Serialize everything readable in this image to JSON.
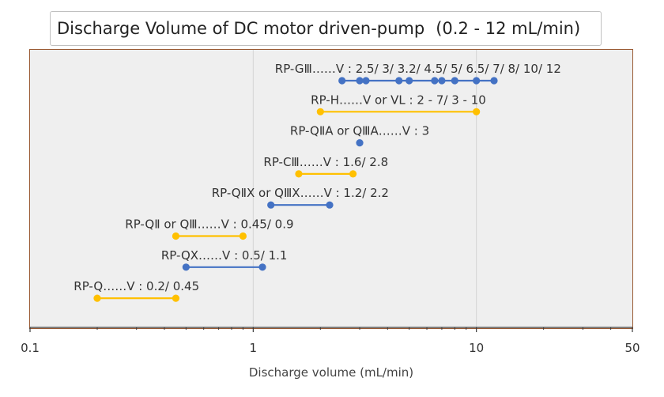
{
  "chart_data": {
    "type": "scatter",
    "title": "Discharge Volume of DC motor driven-pump",
    "subtitle": "(0.2 - 12 mL/min)",
    "xlabel": "Discharge volume (mL/min)",
    "ylabel": "",
    "xscale": "log",
    "xlim": [
      0.1,
      50
    ],
    "xticks": [
      "0.1",
      "1",
      "10",
      "50"
    ],
    "xtick_values": [
      0.1,
      1,
      10,
      50
    ],
    "grid": "vertical",
    "colors": {
      "blue": "#4472c4",
      "gold": "#ffc000",
      "frame": "#9a5a33",
      "plot_bg": "#efefef"
    },
    "series": [
      {
        "label": "RP-GⅢ……V : 2.5/ 3/ 3.2/ 4.5/ 5/ 6.5/ 7/ 8/ 10/ 12",
        "color": "blue",
        "values": [
          2.5,
          3,
          3.2,
          4.5,
          5,
          6.5,
          7,
          8,
          10,
          12
        ]
      },
      {
        "label": "RP-H……V or VL : 2 - 7/ 3 - 10",
        "color": "gold",
        "values": [
          2,
          10
        ]
      },
      {
        "label": "RP-QⅡA or QⅢA……V : 3",
        "color": "blue",
        "values": [
          3
        ]
      },
      {
        "label": "RP-CⅢ……V : 1.6/ 2.8",
        "color": "gold",
        "values": [
          1.6,
          2.8
        ]
      },
      {
        "label": "RP-QⅡX or QⅢX……V : 1.2/ 2.2",
        "color": "blue",
        "values": [
          1.2,
          2.2
        ]
      },
      {
        "label": "RP-QⅡ or QⅢ……V : 0.45/ 0.9",
        "color": "gold",
        "values": [
          0.45,
          0.9
        ]
      },
      {
        "label": "RP-QX……V : 0.5/ 1.1",
        "color": "blue",
        "values": [
          0.5,
          1.1
        ]
      },
      {
        "label": "RP-Q……V : 0.2/ 0.45",
        "color": "gold",
        "values": [
          0.2,
          0.45
        ]
      }
    ]
  }
}
